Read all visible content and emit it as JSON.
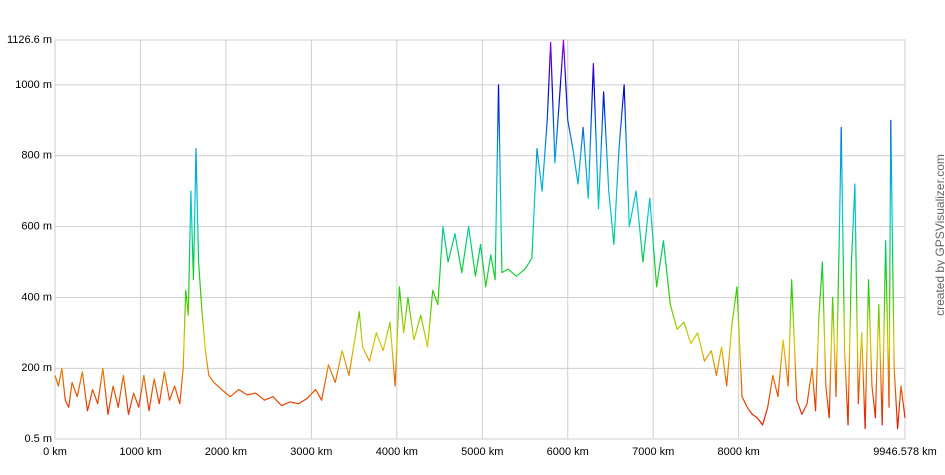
{
  "chart_data": {
    "type": "line",
    "credit": "created by GPSVisualizer.com",
    "xlim": [
      0,
      9946.578
    ],
    "ylim": [
      0.5,
      1126.6
    ],
    "grid": true,
    "xticks": [
      {
        "value": 0,
        "label": "0 km"
      },
      {
        "value": 1000,
        "label": "1000 km"
      },
      {
        "value": 2000,
        "label": "2000 km"
      },
      {
        "value": 3000,
        "label": "3000 km"
      },
      {
        "value": 4000,
        "label": "4000 km"
      },
      {
        "value": 5000,
        "label": "5000 km"
      },
      {
        "value": 6000,
        "label": "6000 km"
      },
      {
        "value": 7000,
        "label": "7000 km"
      },
      {
        "value": 8000,
        "label": "8000 km"
      },
      {
        "value": 9946.578,
        "label": "9946.578 km"
      }
    ],
    "yticks": [
      {
        "value": 0.5,
        "label": "0.5 m"
      },
      {
        "value": 200,
        "label": "200 m"
      },
      {
        "value": 400,
        "label": "400 m"
      },
      {
        "value": 600,
        "label": "600 m"
      },
      {
        "value": 800,
        "label": "800 m"
      },
      {
        "value": 1000,
        "label": "1000 m"
      },
      {
        "value": 1126.6,
        "label": "1126.6 m"
      }
    ],
    "x": [
      0,
      40,
      80,
      120,
      160,
      200,
      260,
      320,
      380,
      440,
      500,
      560,
      620,
      680,
      740,
      800,
      860,
      920,
      980,
      1040,
      1100,
      1160,
      1220,
      1280,
      1340,
      1400,
      1460,
      1500,
      1530,
      1560,
      1590,
      1620,
      1650,
      1680,
      1720,
      1760,
      1800,
      1860,
      1950,
      2050,
      2150,
      2250,
      2350,
      2450,
      2550,
      2650,
      2750,
      2850,
      2950,
      3050,
      3120,
      3200,
      3280,
      3360,
      3440,
      3520,
      3560,
      3600,
      3680,
      3760,
      3840,
      3920,
      3980,
      4030,
      4080,
      4130,
      4200,
      4280,
      4360,
      4420,
      4480,
      4540,
      4600,
      4680,
      4760,
      4840,
      4920,
      4980,
      5040,
      5100,
      5150,
      5190,
      5230,
      5300,
      5400,
      5500,
      5580,
      5640,
      5700,
      5760,
      5800,
      5850,
      5900,
      5950,
      6000,
      6060,
      6120,
      6180,
      6240,
      6300,
      6360,
      6420,
      6480,
      6540,
      6600,
      6660,
      6720,
      6800,
      6880,
      6960,
      7040,
      7120,
      7200,
      7280,
      7360,
      7440,
      7520,
      7600,
      7680,
      7740,
      7800,
      7860,
      7920,
      7980,
      8040,
      8100,
      8160,
      8220,
      8280,
      8340,
      8400,
      8460,
      8520,
      8580,
      8620,
      8680,
      8740,
      8800,
      8860,
      8900,
      8940,
      8980,
      9020,
      9060,
      9100,
      9140,
      9180,
      9200,
      9240,
      9280,
      9320,
      9360,
      9400,
      9440,
      9480,
      9520,
      9560,
      9600,
      9640,
      9680,
      9720,
      9760,
      9780,
      9820,
      9860,
      9900,
      9946.578
    ],
    "values": [
      180,
      150,
      200,
      110,
      90,
      160,
      120,
      190,
      80,
      140,
      100,
      200,
      70,
      150,
      90,
      180,
      70,
      130,
      90,
      180,
      80,
      170,
      100,
      190,
      110,
      150,
      100,
      200,
      420,
      350,
      700,
      450,
      820,
      500,
      360,
      250,
      180,
      160,
      140,
      120,
      140,
      125,
      130,
      110,
      120,
      95,
      105,
      100,
      115,
      140,
      110,
      210,
      160,
      250,
      180,
      300,
      360,
      260,
      220,
      300,
      250,
      330,
      150,
      430,
      300,
      400,
      280,
      350,
      260,
      420,
      380,
      600,
      500,
      580,
      470,
      600,
      460,
      550,
      430,
      520,
      450,
      1000,
      470,
      480,
      460,
      480,
      510,
      820,
      700,
      900,
      1120,
      780,
      950,
      1126,
      900,
      820,
      720,
      880,
      680,
      1060,
      650,
      980,
      700,
      550,
      820,
      1000,
      600,
      700,
      500,
      680,
      430,
      560,
      380,
      310,
      330,
      270,
      300,
      220,
      250,
      180,
      260,
      150,
      320,
      430,
      120,
      90,
      70,
      60,
      40,
      90,
      180,
      120,
      280,
      150,
      450,
      110,
      70,
      100,
      200,
      80,
      350,
      500,
      150,
      60,
      400,
      120,
      600,
      880,
      250,
      40,
      500,
      720,
      100,
      300,
      30,
      450,
      150,
      60,
      380,
      40,
      560,
      90,
      900,
      200,
      30,
      150,
      60
    ]
  }
}
